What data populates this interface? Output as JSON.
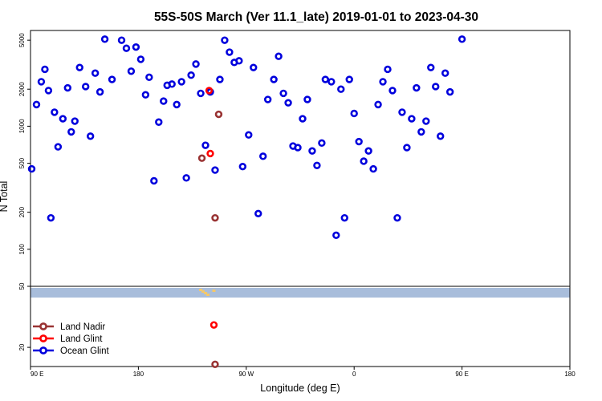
{
  "chart_data": {
    "type": "scatter",
    "title": "55S-50S March (Ver 11.1_late)   2019-01-01 to 2023-04-30",
    "xlabel": "Longitude (deg E)",
    "ylabel": "N Total",
    "xlim": [
      90,
      450
    ],
    "ylim": [
      15,
      6000
    ],
    "y_scale": "log",
    "y_break": 50,
    "x_ticks": [
      {
        "value": 90,
        "label": "90 E"
      },
      {
        "value": 180,
        "label": "180"
      },
      {
        "value": 270,
        "label": "90 W"
      },
      {
        "value": 360,
        "label": "0"
      },
      {
        "value": 450,
        "label": "90 E"
      },
      {
        "value": 540,
        "label": "180"
      }
    ],
    "y_ticks_upper": [
      {
        "value": 100,
        "label": "100"
      },
      {
        "value": 200,
        "label": "200"
      },
      {
        "value": 500,
        "label": "500"
      },
      {
        "value": 1000,
        "label": "1000"
      },
      {
        "value": 2000,
        "label": "2000"
      },
      {
        "value": 5000,
        "label": "5000"
      }
    ],
    "y_ticks_lower": [
      {
        "value": 20,
        "label": "20"
      },
      {
        "value": 50,
        "label": "50"
      }
    ],
    "x_display_max": 540,
    "legend_position": "bottom-left",
    "series": [
      {
        "name": "Land Nadir",
        "color": "#993333",
        "points": [
          [
            247,
            1250
          ],
          [
            233,
            550
          ],
          [
            244,
            180
          ],
          [
            244,
            15.5
          ]
        ]
      },
      {
        "name": "Land Glint",
        "color": "#ff0000",
        "points": [
          [
            239,
            1950
          ],
          [
            240,
            600
          ],
          [
            243,
            28
          ]
        ]
      },
      {
        "name": "Ocean Glint",
        "color": "#0000dd",
        "points": [
          [
            91,
            450
          ],
          [
            95,
            1500
          ],
          [
            99,
            2300
          ],
          [
            102,
            2900
          ],
          [
            105,
            1950
          ],
          [
            107,
            180
          ],
          [
            110,
            1300
          ],
          [
            113,
            680
          ],
          [
            117,
            1150
          ],
          [
            121,
            2050
          ],
          [
            124,
            900
          ],
          [
            127,
            1100
          ],
          [
            131,
            3000
          ],
          [
            136,
            2100
          ],
          [
            140,
            830
          ],
          [
            144,
            2700
          ],
          [
            148,
            1900
          ],
          [
            152,
            5100
          ],
          [
            158,
            2400
          ],
          [
            166,
            5000
          ],
          [
            170,
            4300
          ],
          [
            174,
            2800
          ],
          [
            178,
            4400
          ],
          [
            182,
            3500
          ],
          [
            186,
            1800
          ],
          [
            189,
            2500
          ],
          [
            193,
            360
          ],
          [
            197,
            1080
          ],
          [
            201,
            1600
          ],
          [
            204,
            2150
          ],
          [
            208,
            2200
          ],
          [
            212,
            1500
          ],
          [
            216,
            2300
          ],
          [
            220,
            380
          ],
          [
            224,
            2600
          ],
          [
            228,
            3200
          ],
          [
            232,
            1850
          ],
          [
            236,
            700
          ],
          [
            240,
            1900
          ],
          [
            244,
            440
          ],
          [
            248,
            2400
          ],
          [
            252,
            5000
          ],
          [
            256,
            4000
          ],
          [
            260,
            3300
          ],
          [
            264,
            3400
          ],
          [
            267,
            470
          ],
          [
            272,
            850
          ],
          [
            276,
            3000
          ],
          [
            280,
            195
          ],
          [
            284,
            570
          ],
          [
            288,
            1650
          ],
          [
            293,
            2400
          ],
          [
            297,
            3700
          ],
          [
            301,
            1850
          ],
          [
            305,
            1550
          ],
          [
            309,
            690
          ],
          [
            313,
            670
          ],
          [
            317,
            1150
          ],
          [
            321,
            1650
          ],
          [
            325,
            630
          ],
          [
            329,
            480
          ],
          [
            333,
            730
          ],
          [
            336,
            2400
          ],
          [
            341,
            2300
          ],
          [
            345,
            130
          ],
          [
            349,
            2000
          ],
          [
            352,
            180
          ],
          [
            356,
            2400
          ],
          [
            360,
            1270
          ],
          [
            364,
            750
          ],
          [
            368,
            520
          ],
          [
            372,
            630
          ],
          [
            376,
            450
          ],
          [
            380,
            1500
          ],
          [
            384,
            2300
          ],
          [
            388,
            2900
          ],
          [
            392,
            1950
          ],
          [
            396,
            180
          ],
          [
            400,
            1300
          ],
          [
            404,
            670
          ],
          [
            408,
            1150
          ],
          [
            412,
            2050
          ],
          [
            416,
            900
          ],
          [
            420,
            1100
          ],
          [
            424,
            3000
          ],
          [
            428,
            2100
          ],
          [
            432,
            830
          ],
          [
            436,
            2700
          ],
          [
            440,
            1900
          ],
          [
            450,
            5100
          ]
        ]
      }
    ]
  }
}
